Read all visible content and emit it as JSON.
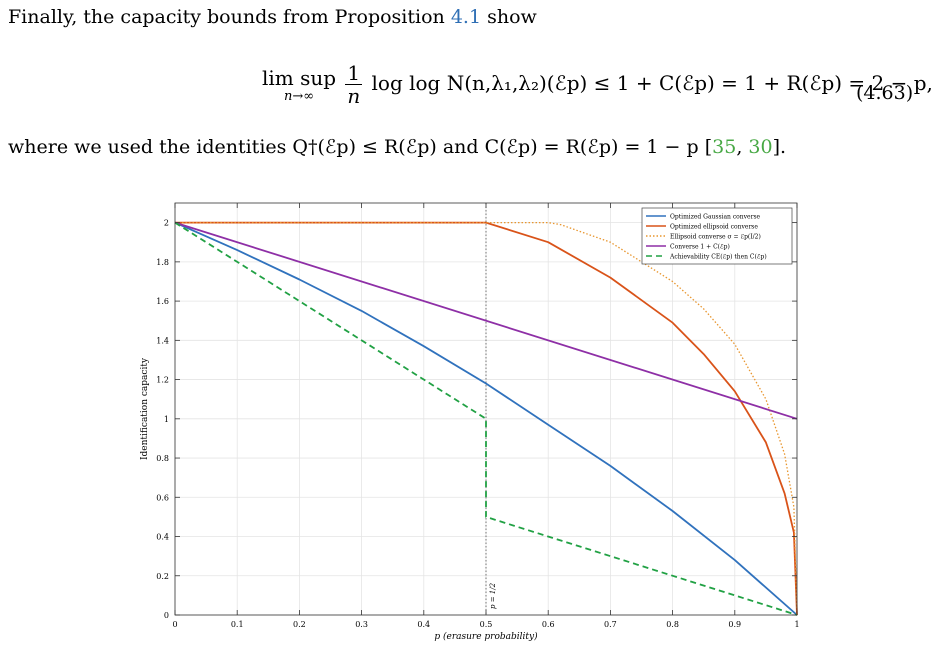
{
  "text": {
    "intro": "Finally, the capacity bounds from Proposition",
    "prop_ref": "4.1",
    "intro_tail": "show",
    "eq_limsup": "lim sup",
    "eq_limsub": "n→∞",
    "eq_num": "1",
    "eq_den": "n",
    "eq_body": "log log N(n,λ₁,λ₂)(ℰp) ≤ 1 + C(ℰp) = 1 + R(ℰp) = 2 − p,",
    "eq_number": "(4.63)",
    "where_pre": "where we used the identities Q†(ℰp) ≤ R(ℰp) and C(ℰp) = R(ℰp) = 1 − p [",
    "cite1": "35",
    "cite_sep": ", ",
    "cite2": "30",
    "where_post": "]."
  },
  "colors": {
    "gaussian": "#3072bd",
    "ellipsoid": "#d95319",
    "ellipsoid_dotted": "#e8962f",
    "converse": "#8e2fa6",
    "achievability": "#21a144",
    "ref_blue": "#2f6fb5",
    "ref_green": "#47a844"
  },
  "chart_data": {
    "type": "line",
    "xlabel": "p (erasure probability)",
    "ylabel": "Identification capacity",
    "xlim": [
      0,
      1
    ],
    "ylim": [
      0,
      2.1
    ],
    "xticks": [
      0,
      0.1,
      0.2,
      0.3,
      0.4,
      0.5,
      0.6,
      0.7,
      0.8,
      0.9,
      1
    ],
    "yticks": [
      0,
      0.2,
      0.4,
      0.6,
      0.8,
      1,
      1.2,
      1.4,
      1.6,
      1.8,
      2
    ],
    "grid": true,
    "legend_position": "top-right",
    "vline": {
      "x": 0.5,
      "label": "p = 1/2"
    },
    "series": [
      {
        "name": "Optimized Gaussian converse",
        "style": "solid",
        "color": "#3072bd",
        "points": [
          [
            0,
            2
          ],
          [
            0.1,
            1.86
          ],
          [
            0.2,
            1.71
          ],
          [
            0.3,
            1.55
          ],
          [
            0.4,
            1.37
          ],
          [
            0.5,
            1.18
          ],
          [
            0.6,
            0.97
          ],
          [
            0.7,
            0.76
          ],
          [
            0.8,
            0.53
          ],
          [
            0.9,
            0.28
          ],
          [
            1,
            0
          ]
        ]
      },
      {
        "name": "Optimized ellipsoid converse",
        "style": "solid",
        "color": "#d95319",
        "points": [
          [
            0,
            2
          ],
          [
            0.5,
            2
          ],
          [
            0.6,
            1.9
          ],
          [
            0.7,
            1.72
          ],
          [
            0.8,
            1.49
          ],
          [
            0.85,
            1.33
          ],
          [
            0.9,
            1.14
          ],
          [
            0.95,
            0.88
          ],
          [
            0.98,
            0.62
          ],
          [
            0.995,
            0.42
          ],
          [
            1,
            0
          ]
        ]
      },
      {
        "name": "Ellipsoid converse σ = ℰp(I/2)",
        "style": "dotted",
        "color": "#e8962f",
        "points": [
          [
            0,
            2
          ],
          [
            0.6,
            2
          ],
          [
            0.62,
            1.99
          ],
          [
            0.7,
            1.9
          ],
          [
            0.8,
            1.7
          ],
          [
            0.85,
            1.56
          ],
          [
            0.9,
            1.38
          ],
          [
            0.95,
            1.1
          ],
          [
            0.98,
            0.82
          ],
          [
            0.995,
            0.55
          ],
          [
            1,
            0
          ]
        ]
      },
      {
        "name": "Converse 1 + C(ℰp)",
        "style": "solid",
        "color": "#8e2fa6",
        "points": [
          [
            0,
            2
          ],
          [
            1,
            1
          ]
        ]
      },
      {
        "name": "Achievability CE(ℰp) then C(ℰp)",
        "style": "dashed",
        "color": "#21a144",
        "points": [
          [
            0,
            2
          ],
          [
            0.5,
            1
          ],
          [
            0.5,
            0.5
          ],
          [
            1,
            0
          ]
        ]
      }
    ]
  }
}
